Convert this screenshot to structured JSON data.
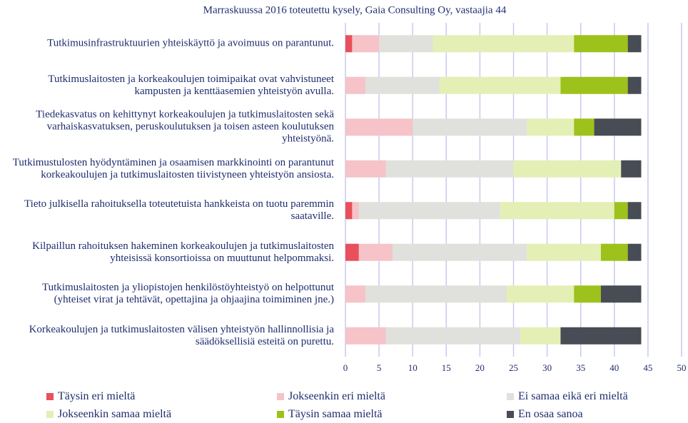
{
  "chart_data": {
    "type": "bar",
    "orientation": "horizontal",
    "stacked": true,
    "title": "Marraskuussa 2016 toteutettu kysely, Gaia Consulting Oy, vastaajia 44",
    "categories": [
      "Tutkimusinfrastruktuurien yhteiskäyttö ja avoimuus on parantunut.",
      "Tutkimuslaitosten ja korkeakoulujen toimipaikat ovat vahvistuneet kampusten ja kenttäasemien yhteistyön avulla.",
      "Tiedekasvatus on kehittynyt korkeakoulujen ja tutkimuslaitosten sekä varhaiskasvatuksen, peruskoulutuksen ja toisen asteen koulutuksen yhteistyönä.",
      "Tutkimustulosten hyödyntäminen ja osaamisen markkinointi on parantunut korkeakoulujen ja tutkimuslaitosten tiivistyneen yhteistyön ansiosta.",
      "Tieto julkisella rahoituksella toteutetuista hankkeista on tuotu paremmin saataville.",
      "Kilpaillun rahoituksen hakeminen korkeakoulujen ja tutkimuslaitosten yhteisissä konsortioissa on muuttunut helpommaksi.",
      "Tutkimuslaitosten ja yliopistojen henkilöstöyhteistyö on helpottunut (yhteiset virat ja tehtävät, opettajina ja ohjaajina toimiminen jne.)",
      "Korkeakoulujen ja tutkimuslaitosten välisen yhteistyön hallinnollisia ja säädöksellisiä esteitä on purettu."
    ],
    "series": [
      {
        "name": "Täysin eri mieltä",
        "color": "#e8505b",
        "values": [
          1,
          0,
          0,
          0,
          1,
          2,
          0,
          0
        ]
      },
      {
        "name": "Jokseenkin eri mieltä",
        "color": "#f5c3c8",
        "values": [
          4,
          3,
          10,
          6,
          1,
          5,
          3,
          6
        ]
      },
      {
        "name": "Ei samaa eikä eri mieltä",
        "color": "#e0e0dc",
        "values": [
          8,
          11,
          17,
          19,
          21,
          20,
          21,
          20
        ]
      },
      {
        "name": "Jokseenkin samaa mieltä",
        "color": "#e3efb5",
        "values": [
          21,
          18,
          7,
          16,
          17,
          11,
          10,
          6
        ]
      },
      {
        "name": "Täysin samaa mieltä",
        "color": "#9dc21b",
        "values": [
          8,
          10,
          3,
          0,
          2,
          4,
          4,
          0
        ]
      },
      {
        "name": "En osaa sanoa",
        "color": "#474c55",
        "values": [
          2,
          2,
          7,
          3,
          2,
          2,
          6,
          12
        ]
      }
    ],
    "xlim": [
      0,
      50
    ],
    "xticks": [
      0,
      5,
      10,
      15,
      20,
      25,
      30,
      35,
      40,
      45,
      50
    ],
    "grid": true
  }
}
